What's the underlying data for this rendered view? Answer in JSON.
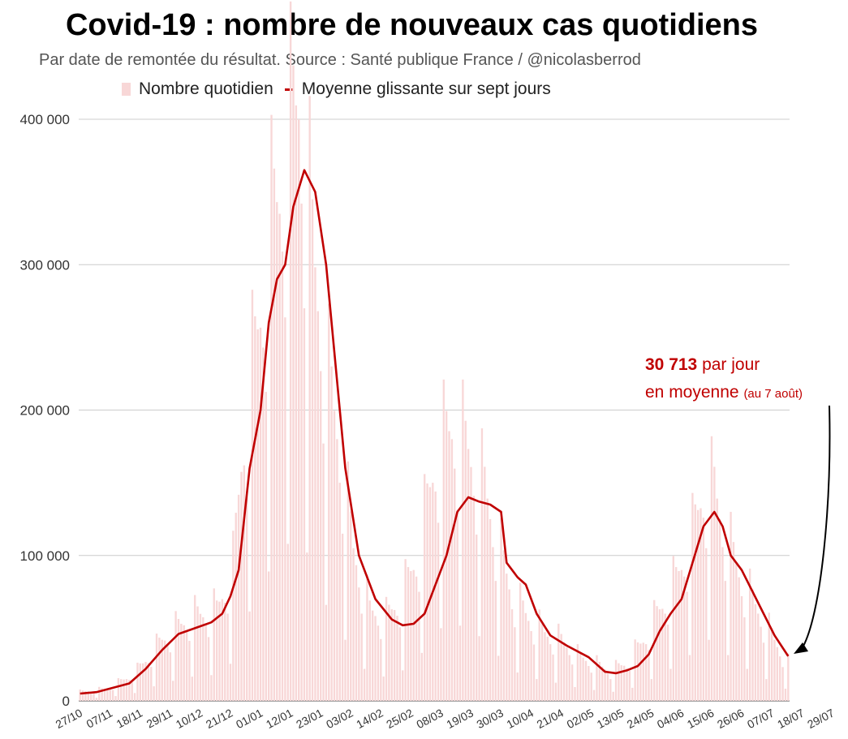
{
  "title": "Covid-19 : nombre de nouveaux cas quotidiens",
  "subtitle": "Par date de remontée du résultat. Source : Santé publique France / @nicolasberrod",
  "colors": {
    "bars": "#f8d7d7",
    "line": "#c00000",
    "grid": "#cccccc",
    "annotation": "#c00000"
  },
  "annotation": {
    "value": "30 713",
    "text1": "par jour",
    "text2": "en moyenne",
    "note": "(au 7 août)"
  },
  "chart_data": {
    "type": "bar",
    "title": "Covid-19 : nombre de nouveaux cas quotidiens",
    "ylim": [
      0,
      400000
    ],
    "y_ticks": [
      0,
      100000,
      200000,
      300000,
      400000
    ],
    "y_tick_labels": [
      "0",
      "100 000",
      "200 000",
      "300 000",
      "400 000"
    ],
    "x_tick_labels": [
      "27/10",
      "07/11",
      "18/11",
      "29/11",
      "10/12",
      "21/12",
      "01/01",
      "12/01",
      "23/01",
      "03/02",
      "14/02",
      "25/02",
      "08/03",
      "19/03",
      "30/03",
      "10/04",
      "21/04",
      "02/05",
      "13/05",
      "24/05",
      "04/06",
      "15/06",
      "26/06",
      "07/07",
      "18/07",
      "29/07"
    ],
    "grid": true,
    "legend_position": "top",
    "series": [
      {
        "name": "Nombre quotidien",
        "type": "bar",
        "keypoints": [
          [
            0,
            6000
          ],
          [
            10,
            8000
          ],
          [
            20,
            18000
          ],
          [
            30,
            40000
          ],
          [
            40,
            55000
          ],
          [
            50,
            60000
          ],
          [
            56,
            90000
          ],
          [
            60,
            180000
          ],
          [
            64,
            230000
          ],
          [
            70,
            310000
          ],
          [
            76,
            360000
          ],
          [
            80,
            400000
          ],
          [
            85,
            300000
          ],
          [
            90,
            220000
          ],
          [
            94,
            180000
          ],
          [
            100,
            100000
          ],
          [
            106,
            60000
          ],
          [
            112,
            55000
          ],
          [
            118,
            70000
          ],
          [
            124,
            100000
          ],
          [
            130,
            160000
          ],
          [
            136,
            180000
          ],
          [
            142,
            165000
          ],
          [
            148,
            140000
          ],
          [
            152,
            110000
          ],
          [
            158,
            70000
          ],
          [
            164,
            55000
          ],
          [
            170,
            45000
          ],
          [
            176,
            40000
          ],
          [
            182,
            30000
          ],
          [
            188,
            25000
          ],
          [
            194,
            20000
          ],
          [
            200,
            25000
          ],
          [
            206,
            40000
          ],
          [
            212,
            60000
          ],
          [
            218,
            80000
          ],
          [
            224,
            110000
          ],
          [
            228,
            140000
          ],
          [
            232,
            140000
          ],
          [
            236,
            110000
          ],
          [
            242,
            80000
          ],
          [
            248,
            60000
          ],
          [
            254,
            40000
          ],
          [
            259,
            25000
          ]
        ]
      },
      {
        "name": "Moyenne glissante sur sept jours",
        "type": "line",
        "keypoints": [
          [
            0,
            5000
          ],
          [
            6,
            6000
          ],
          [
            12,
            9000
          ],
          [
            18,
            12000
          ],
          [
            24,
            22000
          ],
          [
            30,
            35000
          ],
          [
            36,
            46000
          ],
          [
            42,
            50000
          ],
          [
            48,
            54000
          ],
          [
            52,
            60000
          ],
          [
            55,
            72000
          ],
          [
            58,
            90000
          ],
          [
            62,
            160000
          ],
          [
            66,
            200000
          ],
          [
            69,
            260000
          ],
          [
            72,
            290000
          ],
          [
            75,
            300000
          ],
          [
            78,
            340000
          ],
          [
            82,
            365000
          ],
          [
            86,
            350000
          ],
          [
            90,
            300000
          ],
          [
            93,
            240000
          ],
          [
            97,
            160000
          ],
          [
            102,
            100000
          ],
          [
            108,
            70000
          ],
          [
            114,
            56000
          ],
          [
            118,
            52000
          ],
          [
            122,
            53000
          ],
          [
            126,
            60000
          ],
          [
            130,
            80000
          ],
          [
            134,
            100000
          ],
          [
            138,
            130000
          ],
          [
            142,
            140000
          ],
          [
            146,
            137000
          ],
          [
            150,
            135000
          ],
          [
            154,
            130000
          ],
          [
            156,
            95000
          ],
          [
            160,
            85000
          ],
          [
            163,
            80000
          ],
          [
            167,
            60000
          ],
          [
            172,
            45000
          ],
          [
            178,
            38000
          ],
          [
            186,
            30000
          ],
          [
            192,
            20000
          ],
          [
            196,
            19000
          ],
          [
            200,
            21000
          ],
          [
            204,
            24000
          ],
          [
            208,
            32000
          ],
          [
            212,
            48000
          ],
          [
            216,
            60000
          ],
          [
            220,
            70000
          ],
          [
            224,
            95000
          ],
          [
            228,
            120000
          ],
          [
            232,
            130000
          ],
          [
            235,
            120000
          ],
          [
            238,
            100000
          ],
          [
            242,
            90000
          ],
          [
            246,
            75000
          ],
          [
            250,
            60000
          ],
          [
            254,
            45000
          ],
          [
            259,
            30713
          ]
        ]
      }
    ]
  }
}
